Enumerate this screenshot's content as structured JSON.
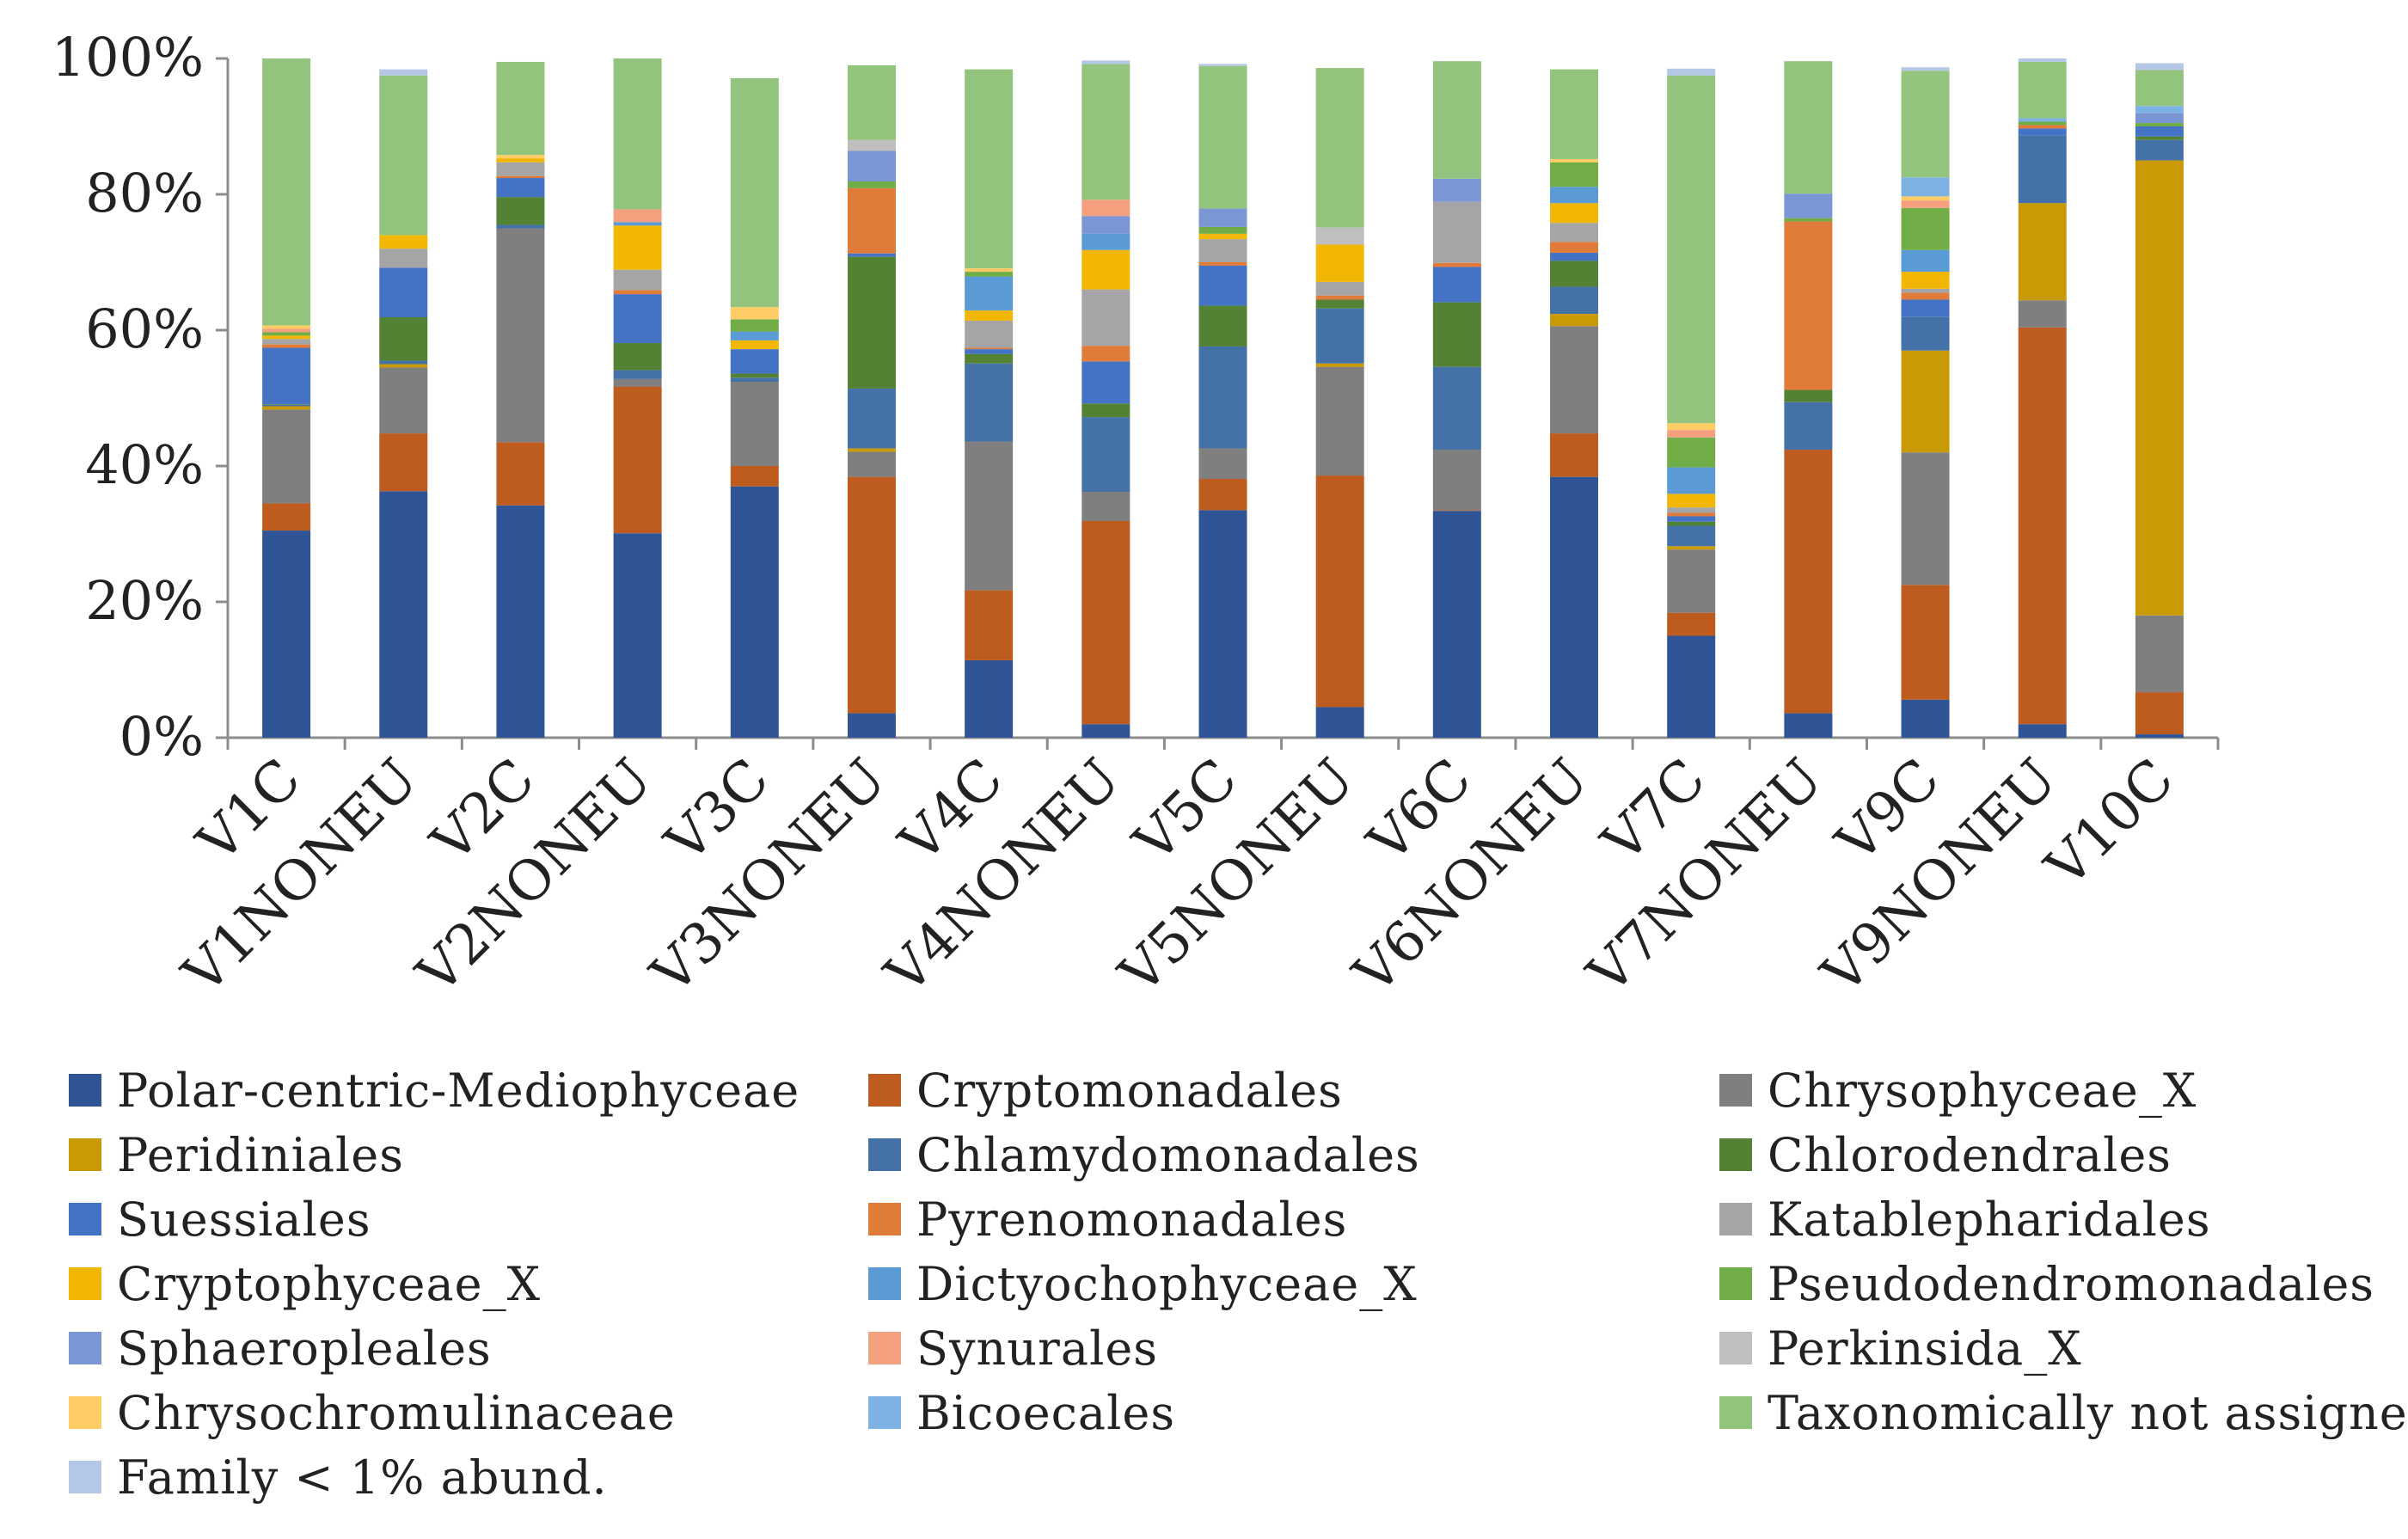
{
  "chart_data": {
    "type": "bar",
    "stacked": true,
    "title": "",
    "xlabel": "",
    "ylabel": "",
    "ylim": [
      0,
      100
    ],
    "y_ticks": [
      "0%",
      "20%",
      "40%",
      "60%",
      "80%",
      "100%"
    ],
    "legend_position": "bottom",
    "categories": [
      "V1C",
      "V1NONEU",
      "V2C",
      "V2NONEU",
      "V3C",
      "V3NONEU",
      "V4C",
      "V4NONEU",
      "V5C",
      "V5NONEU",
      "V6C",
      "V6NONEU",
      "V7C",
      "V7NONEU",
      "V9C",
      "V9NONEU",
      "V10C"
    ],
    "series": [
      {
        "name": "Polar-centric-Mediophyceae",
        "color": "#2F5597",
        "values": [
          30.5,
          36.3,
          34.2,
          30.1,
          37.0,
          3.6,
          11.4,
          2.0,
          33.5,
          4.5,
          33.4,
          38.4,
          15.0,
          3.6,
          5.6,
          2.0,
          0.5
        ]
      },
      {
        "name": "Cryptomonadales",
        "color": "#BE5B1F",
        "values": [
          4.0,
          8.5,
          9.3,
          21.6,
          3.0,
          34.8,
          10.3,
          29.9,
          4.6,
          34.1,
          0.1,
          6.4,
          3.4,
          38.8,
          16.9,
          58.4,
          6.2
        ]
      },
      {
        "name": "Chrysophyceae_X",
        "color": "#7F7F7F",
        "values": [
          13.8,
          9.7,
          31.5,
          1.1,
          12.4,
          3.7,
          21.9,
          4.3,
          4.5,
          16.0,
          8.9,
          15.8,
          9.3,
          0.0,
          19.5,
          4.0,
          11.3
        ]
      },
      {
        "name": "Peridiniales",
        "color": "#C99A06",
        "values": [
          0.5,
          0.5,
          0.0,
          0.0,
          0.0,
          0.5,
          0.0,
          0.0,
          0.0,
          0.5,
          0.0,
          1.8,
          0.5,
          0.0,
          15.0,
          14.3,
          67.0
        ]
      },
      {
        "name": "Chlamydomonadales",
        "color": "#4472A8",
        "values": [
          0.2,
          0.5,
          0.5,
          1.3,
          0.6,
          8.8,
          11.5,
          11.0,
          15.0,
          8.1,
          12.2,
          4.0,
          3.0,
          7.0,
          5.0,
          10.0,
          3.0
        ]
      },
      {
        "name": "Chlorodendrales",
        "color": "#548235",
        "values": [
          0.1,
          6.4,
          4.1,
          4.0,
          0.6,
          19.4,
          1.4,
          2.0,
          6.0,
          1.3,
          9.5,
          3.8,
          0.6,
          1.8,
          0.0,
          0.0,
          0.5
        ]
      },
      {
        "name": "Suessiales",
        "color": "#4472C4",
        "values": [
          8.3,
          7.3,
          2.8,
          7.2,
          3.6,
          0.5,
          0.7,
          6.2,
          5.9,
          0.0,
          5.2,
          1.2,
          0.8,
          0.0,
          2.5,
          1.0,
          1.5
        ]
      },
      {
        "name": "Pyrenomonadales",
        "color": "#E07B39",
        "values": [
          0.5,
          0.0,
          0.3,
          0.6,
          0.0,
          9.6,
          0.2,
          2.3,
          0.5,
          0.6,
          0.6,
          1.6,
          0.5,
          24.8,
          1.0,
          0.5,
          0.0
        ]
      },
      {
        "name": "Katablepharidales",
        "color": "#A5A5A5",
        "values": [
          0.8,
          2.8,
          2.0,
          3.0,
          0.0,
          0.0,
          4.0,
          8.3,
          3.4,
          2.0,
          9.0,
          2.8,
          0.8,
          0.0,
          0.6,
          0.0,
          0.0
        ]
      },
      {
        "name": "Cryptophyceae_X",
        "color": "#F2B705",
        "values": [
          0.5,
          2.0,
          0.6,
          6.5,
          1.3,
          0.0,
          1.5,
          5.8,
          0.8,
          5.5,
          0.0,
          2.9,
          2.0,
          0.0,
          2.5,
          0.0,
          0.0
        ]
      },
      {
        "name": "Dictyochophyceae_X",
        "color": "#5B9BD5",
        "values": [
          0.0,
          0.0,
          0.0,
          0.5,
          1.3,
          0.0,
          5.0,
          2.4,
          0.0,
          0.0,
          0.0,
          2.4,
          3.9,
          0.0,
          3.2,
          0.0,
          0.0
        ]
      },
      {
        "name": "Pseudodendromonadales",
        "color": "#70AD47",
        "values": [
          0.5,
          0.0,
          0.0,
          0.0,
          1.8,
          1.0,
          0.7,
          0.0,
          1.0,
          0.0,
          0.0,
          3.6,
          4.4,
          0.5,
          6.2,
          0.5,
          0.5
        ]
      },
      {
        "name": "Sphaeropleales",
        "color": "#7B96D4",
        "values": [
          0.0,
          0.0,
          0.0,
          0.0,
          0.0,
          4.5,
          0.0,
          2.6,
          2.7,
          0.0,
          3.4,
          0.0,
          0.0,
          3.6,
          0.0,
          0.0,
          1.5
        ]
      },
      {
        "name": "Synurales",
        "color": "#F4A07E",
        "values": [
          0.5,
          0.0,
          0.0,
          1.9,
          0.0,
          0.0,
          0.0,
          2.4,
          0.0,
          0.0,
          0.0,
          0.0,
          1.1,
          0.0,
          1.1,
          0.0,
          0.0
        ]
      },
      {
        "name": "Perkinsida_X",
        "color": "#BFBFBF",
        "values": [
          0.0,
          0.0,
          0.0,
          0.0,
          0.0,
          1.6,
          0.0,
          0.0,
          0.0,
          2.5,
          0.0,
          0.0,
          0.0,
          0.0,
          0.0,
          0.0,
          0.0
        ]
      },
      {
        "name": "Chrysochromulinaceae",
        "color": "#FFCC66",
        "values": [
          0.5,
          0.0,
          0.5,
          0.0,
          1.8,
          0.0,
          0.5,
          0.0,
          0.0,
          0.0,
          0.0,
          0.5,
          1.0,
          0.0,
          0.6,
          0.0,
          0.0
        ]
      },
      {
        "name": "Bicoecales",
        "color": "#7EB2E4",
        "values": [
          0.0,
          0.0,
          0.0,
          0.0,
          0.0,
          0.0,
          0.0,
          0.0,
          0.0,
          0.0,
          0.0,
          0.0,
          0.0,
          0.0,
          2.8,
          0.5,
          1.0
        ]
      },
      {
        "name": "Taxonomically not assigned",
        "color": "#93C47D",
        "values": [
          39.3,
          23.5,
          13.7,
          22.2,
          33.7,
          11.0,
          29.3,
          20.0,
          21.0,
          23.5,
          17.3,
          13.2,
          51.2,
          19.5,
          15.7,
          8.3,
          5.3
        ]
      },
      {
        "name": "Family < 1% abund.",
        "color": "#B4C7E7",
        "values": [
          0.0,
          0.9,
          0.0,
          0.0,
          0.0,
          0.0,
          0.0,
          0.5,
          0.3,
          0.0,
          0.0,
          0.0,
          1.0,
          0.0,
          0.5,
          0.5,
          1.0
        ]
      }
    ]
  }
}
